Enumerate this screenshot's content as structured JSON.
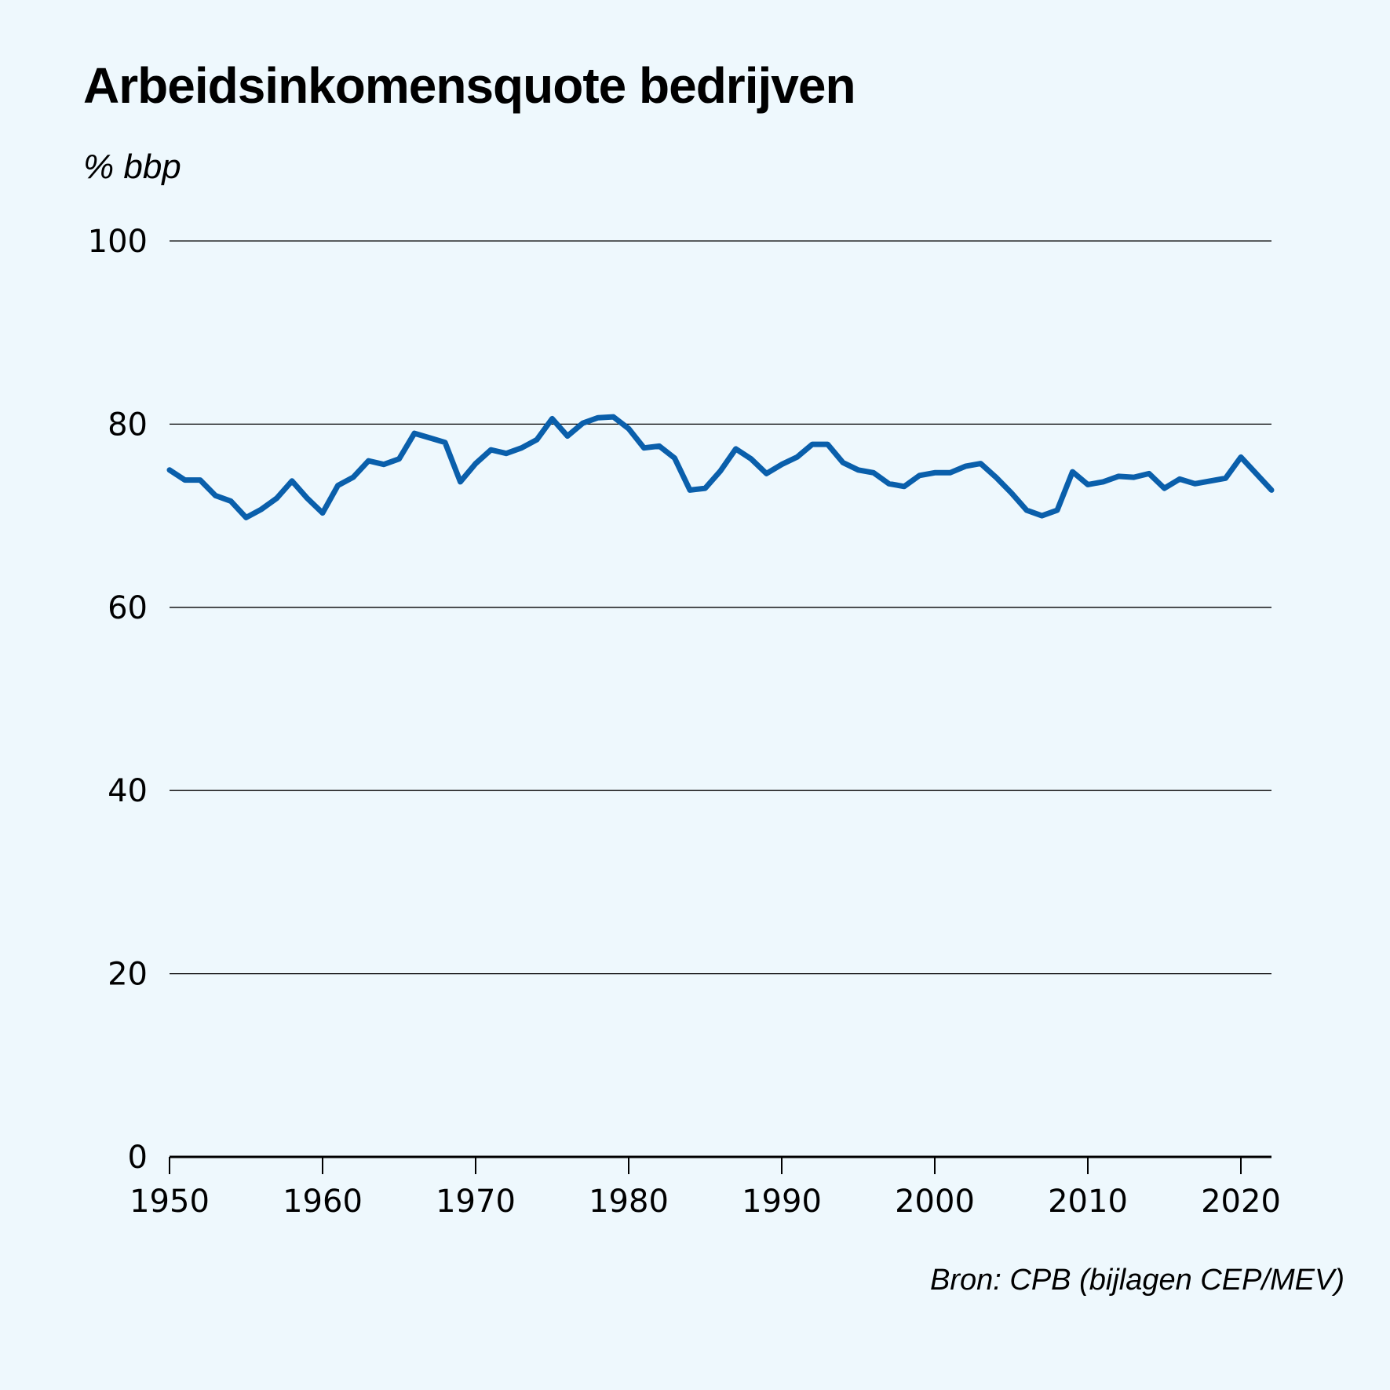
{
  "title": "Arbeidsinkomensquote bedrijven",
  "unit_label": "% bbp",
  "source": "Bron: CPB (bijlagen CEP/MEV)",
  "colors": {
    "background": "#eef8fd",
    "line": "#0a5fab",
    "grid": "#000000"
  },
  "chart_data": {
    "type": "line",
    "title": "Arbeidsinkomensquote bedrijven",
    "ylabel": "% bbp",
    "xlabel": "",
    "xlim": [
      1950,
      2022
    ],
    "ylim": [
      0,
      100
    ],
    "x_ticks": [
      1950,
      1960,
      1970,
      1980,
      1990,
      2000,
      2010,
      2020
    ],
    "y_ticks": [
      0,
      20,
      40,
      60,
      80,
      100
    ],
    "grid": "horizontal",
    "x": [
      1950,
      1951,
      1952,
      1953,
      1954,
      1955,
      1956,
      1957,
      1958,
      1959,
      1960,
      1961,
      1962,
      1963,
      1964,
      1965,
      1966,
      1967,
      1968,
      1969,
      1970,
      1971,
      1972,
      1973,
      1974,
      1975,
      1976,
      1977,
      1978,
      1979,
      1980,
      1981,
      1982,
      1983,
      1984,
      1985,
      1986,
      1987,
      1988,
      1989,
      1990,
      1991,
      1992,
      1993,
      1994,
      1995,
      1996,
      1997,
      1998,
      1999,
      2000,
      2001,
      2002,
      2003,
      2004,
      2005,
      2006,
      2007,
      2008,
      2009,
      2010,
      2011,
      2012,
      2013,
      2014,
      2015,
      2016,
      2017,
      2018,
      2019,
      2020,
      2021,
      2022
    ],
    "series": [
      {
        "values": [
          75.0,
          73.9,
          73.9,
          72.2,
          71.6,
          69.8,
          70.7,
          71.9,
          73.8,
          71.9,
          70.3,
          73.3,
          74.2,
          76.0,
          75.6,
          76.2,
          79.0,
          78.5,
          78.0,
          73.7,
          75.7,
          77.2,
          76.8,
          77.4,
          78.3,
          80.6,
          78.7,
          80.1,
          80.7,
          80.8,
          79.5,
          77.4,
          77.6,
          76.3,
          72.8,
          73.0,
          74.9,
          77.3,
          76.2,
          74.6,
          75.6,
          76.4,
          77.8,
          77.8,
          75.8,
          75.0,
          74.7,
          73.5,
          73.2,
          74.4,
          74.7,
          74.7,
          75.4,
          75.7,
          74.2,
          72.5,
          70.6,
          70.0,
          70.6,
          74.8,
          73.4,
          73.7,
          74.3,
          74.2,
          74.6,
          73.0,
          74.0,
          73.5,
          73.8,
          74.1,
          76.4,
          74.6,
          72.8
        ]
      }
    ]
  }
}
